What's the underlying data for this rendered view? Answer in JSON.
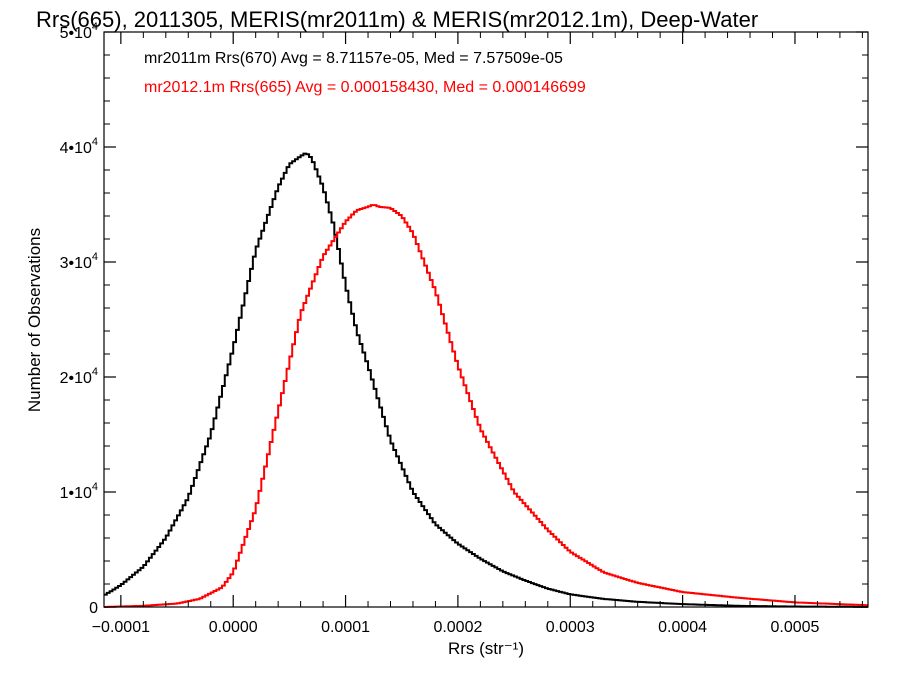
{
  "chart_data": {
    "type": "line",
    "title": "Rrs(665), 2011305, MERIS(mr2011m) & MERIS(mr2012.1m), Deep-Water",
    "xlabel": "Rrs (str⁻¹)",
    "ylabel": "Number of Observations",
    "xlim": [
      -0.000115,
      0.000565
    ],
    "ylim": [
      0,
      50000
    ],
    "grid": false,
    "x_ticks": [
      {
        "value": -0.0001,
        "label": "−0.0001"
      },
      {
        "value": 0.0,
        "label": "0.0000"
      },
      {
        "value": 0.0001,
        "label": "0.0001"
      },
      {
        "value": 0.0002,
        "label": "0.0002"
      },
      {
        "value": 0.0003,
        "label": "0.0003"
      },
      {
        "value": 0.0004,
        "label": "0.0004"
      },
      {
        "value": 0.0005,
        "label": "0.0005"
      }
    ],
    "y_ticks": [
      {
        "value": 0,
        "base": "0",
        "exp": ""
      },
      {
        "value": 10000,
        "base": "1•10",
        "exp": "4"
      },
      {
        "value": 20000,
        "base": "2•10",
        "exp": "4"
      },
      {
        "value": 30000,
        "base": "3•10",
        "exp": "4"
      },
      {
        "value": 40000,
        "base": "4•10",
        "exp": "4"
      },
      {
        "value": 50000,
        "base": "5•10",
        "exp": "4"
      }
    ],
    "series": [
      {
        "name": "mr2011m Rrs(670)",
        "color": "#000000",
        "annotation": "mr2011m Rrs(670) Avg = 8.71157e-05, Med = 7.57509e-05",
        "x": [
          -0.000115,
          -0.0001,
          -8e-05,
          -6e-05,
          -4e-05,
          -2e-05,
          0.0,
          2e-05,
          4e-05,
          5e-05,
          6e-05,
          6.5e-05,
          7e-05,
          8e-05,
          9e-05,
          0.0001,
          0.00011,
          0.00012,
          0.00014,
          0.00016,
          0.00018,
          0.0002,
          0.00022,
          0.00024,
          0.00026,
          0.00028,
          0.0003,
          0.00033,
          0.00036,
          0.0004,
          0.00045,
          0.0005,
          0.000565
        ],
        "y": [
          1000,
          1900,
          3500,
          6000,
          9500,
          15000,
          22500,
          31000,
          36500,
          38500,
          39200,
          39500,
          39000,
          36500,
          33000,
          28000,
          24000,
          21000,
          14500,
          10000,
          7200,
          5500,
          4200,
          3100,
          2300,
          1600,
          1100,
          700,
          450,
          250,
          100,
          40,
          10
        ]
      },
      {
        "name": "mr2012.1m Rrs(665)",
        "color": "#ff0000",
        "annotation": "mr2012.1m Rrs(665) Avg = 0.000158430, Med = 0.000146699",
        "x": [
          -0.000115,
          -8e-05,
          -5e-05,
          -3e-05,
          -1e-05,
          0.0,
          2e-05,
          4e-05,
          6e-05,
          8e-05,
          0.0001,
          0.00011,
          0.00012,
          0.000125,
          0.00013,
          0.00014,
          0.00015,
          0.00016,
          0.00018,
          0.0002,
          0.00022,
          0.00025,
          0.00028,
          0.0003,
          0.00033,
          0.00036,
          0.0004,
          0.00045,
          0.0005,
          0.000565
        ],
        "y": [
          0,
          100,
          300,
          700,
          1700,
          3000,
          8500,
          17000,
          25500,
          30500,
          33500,
          34500,
          34800,
          35000,
          34800,
          34700,
          34000,
          32500,
          27500,
          21000,
          15500,
          10000,
          6700,
          4800,
          3000,
          2100,
          1300,
          800,
          400,
          150
        ]
      }
    ]
  }
}
